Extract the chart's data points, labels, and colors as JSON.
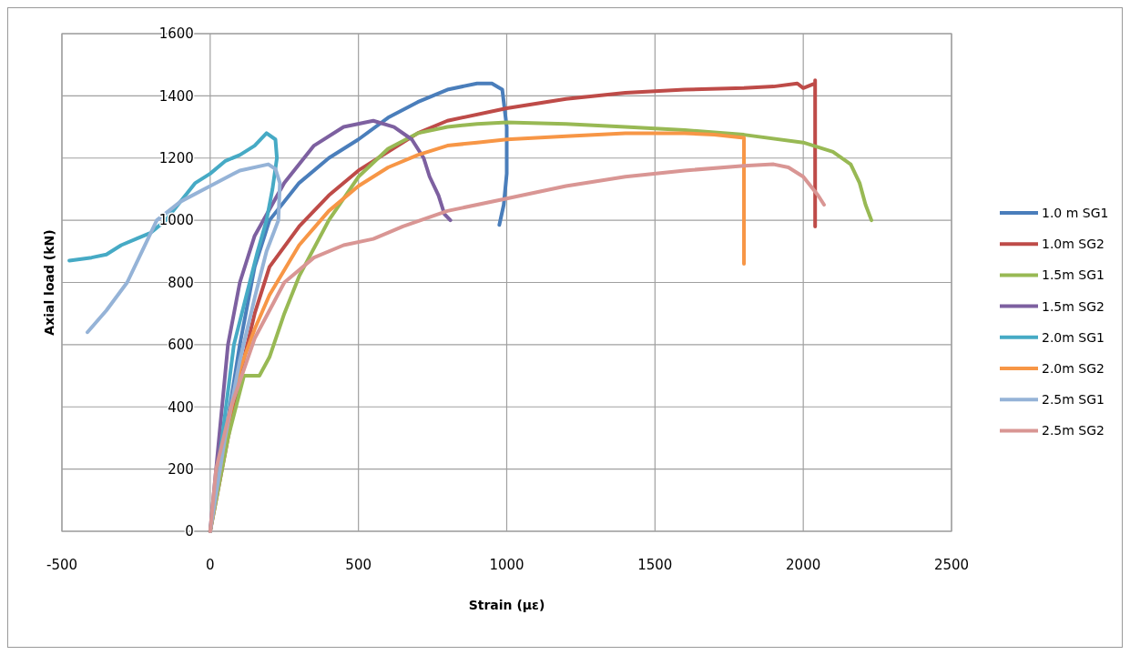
{
  "chart_data": {
    "type": "line",
    "xlabel": "Strain (με)",
    "ylabel": "Axial load (kN)",
    "xlim": [
      -500,
      2500
    ],
    "xticks": [
      -500,
      0,
      500,
      1000,
      1500,
      2000,
      2500
    ],
    "ylim": [
      0,
      1600
    ],
    "yticks": [
      0,
      200,
      400,
      600,
      800,
      1000,
      1200,
      1400,
      1600
    ],
    "grid": true,
    "legend": "right",
    "marker": "none",
    "line_style": "solid",
    "series": [
      {
        "name": "1.0 m SG1",
        "color": "#4a7ebb",
        "x": [
          0,
          50,
          100,
          150,
          200,
          300,
          400,
          500,
          600,
          700,
          800,
          900,
          950,
          985,
          1000,
          1000,
          990,
          975
        ],
        "values": [
          0,
          300,
          600,
          850,
          1000,
          1120,
          1200,
          1260,
          1330,
          1380,
          1420,
          1440,
          1440,
          1420,
          1300,
          1150,
          1050,
          985
        ]
      },
      {
        "name": "1.0m SG2",
        "color": "#be4b48",
        "x": [
          0,
          50,
          100,
          150,
          200,
          300,
          400,
          500,
          600,
          700,
          800,
          1000,
          1200,
          1400,
          1600,
          1800,
          1900,
          1980,
          2000,
          2040,
          2040,
          2040
        ],
        "values": [
          0,
          250,
          500,
          700,
          850,
          980,
          1080,
          1160,
          1220,
          1280,
          1320,
          1360,
          1390,
          1410,
          1420,
          1425,
          1430,
          1440,
          1425,
          1440,
          1450,
          980
        ]
      },
      {
        "name": "1.5m SG1",
        "color": "#98b954",
        "x": [
          0,
          60,
          114,
          166,
          200,
          250,
          300,
          400,
          500,
          600,
          700,
          800,
          900,
          1000,
          1200,
          1400,
          1600,
          1800,
          2000,
          2100,
          2160,
          2190,
          2210,
          2230
        ],
        "values": [
          0,
          300,
          500,
          500,
          560,
          700,
          820,
          1000,
          1140,
          1230,
          1280,
          1300,
          1310,
          1315,
          1310,
          1300,
          1290,
          1275,
          1250,
          1220,
          1180,
          1120,
          1050,
          1000
        ]
      },
      {
        "name": "1.5m SG2",
        "color": "#7d60a0",
        "x": [
          0,
          60,
          100,
          150,
          250,
          350,
          450,
          550,
          620,
          680,
          720,
          740,
          770,
          790,
          810
        ],
        "values": [
          0,
          600,
          800,
          950,
          1120,
          1240,
          1300,
          1320,
          1300,
          1260,
          1200,
          1140,
          1080,
          1020,
          1000
        ]
      },
      {
        "name": "2.0m SG1",
        "color": "#46aac5",
        "x": [
          -475,
          -400,
          -350,
          -300,
          -250,
          -200,
          -150,
          -100,
          -50,
          0,
          50,
          100,
          150,
          190,
          220,
          225,
          210,
          190,
          160,
          120,
          80,
          40,
          0
        ],
        "values": [
          870,
          880,
          890,
          920,
          940,
          960,
          1000,
          1060,
          1120,
          1150,
          1190,
          1210,
          1240,
          1280,
          1260,
          1200,
          1100,
          1000,
          900,
          750,
          600,
          300,
          0
        ]
      },
      {
        "name": "2.0m SG2",
        "color": "#f79646",
        "x": [
          0,
          50,
          100,
          150,
          200,
          300,
          400,
          500,
          600,
          700,
          800,
          900,
          1000,
          1200,
          1400,
          1600,
          1700,
          1800,
          1800
        ],
        "values": [
          0,
          300,
          520,
          650,
          760,
          920,
          1030,
          1110,
          1170,
          1210,
          1240,
          1250,
          1260,
          1270,
          1280,
          1280,
          1275,
          1265,
          860
        ]
      },
      {
        "name": "2.5m SG1",
        "color": "#95b3d7",
        "x": [
          -414,
          -350,
          -280,
          -230,
          -180,
          -100,
          0,
          100,
          196,
          220,
          235,
          230,
          190,
          150,
          100,
          50,
          0
        ],
        "values": [
          640,
          710,
          800,
          900,
          1000,
          1060,
          1110,
          1160,
          1180,
          1165,
          1120,
          1000,
          900,
          750,
          550,
          300,
          0
        ]
      },
      {
        "name": "2.5m SG2",
        "color": "#d99694",
        "x": [
          0,
          20,
          70,
          150,
          250,
          350,
          450,
          550,
          650,
          800,
          1000,
          1200,
          1400,
          1600,
          1800,
          1900,
          1950,
          2000,
          2050,
          2070
        ],
        "values": [
          0,
          200,
          400,
          620,
          800,
          880,
          920,
          940,
          980,
          1030,
          1070,
          1110,
          1140,
          1160,
          1175,
          1180,
          1170,
          1140,
          1080,
          1050
        ]
      }
    ]
  }
}
